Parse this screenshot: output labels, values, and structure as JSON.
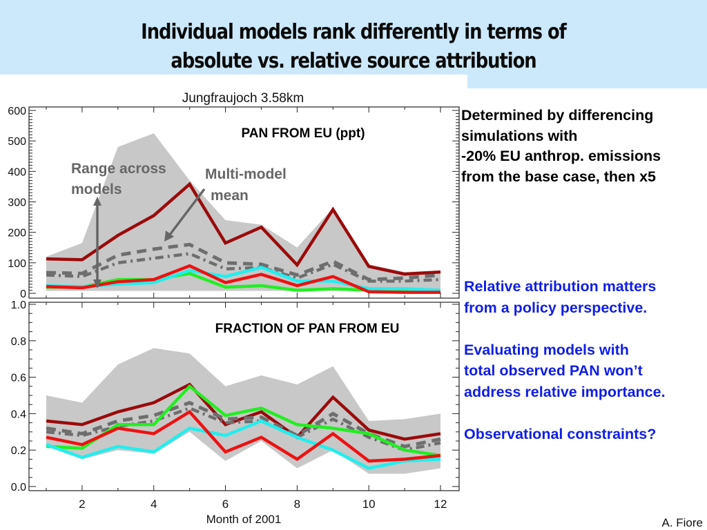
{
  "slide": {
    "title_lines": [
      "Individual models rank differently in terms of",
      "absolute vs. relative source attribution"
    ],
    "author": "A. Fiore"
  },
  "side_note": {
    "lines": [
      "Determined by differencing",
      "simulations with",
      "-20% EU anthrop. emissions",
      "from the base case, then x5"
    ]
  },
  "blue_notes": {
    "paragraphs": [
      [
        "Relative attribution matters",
        "from a policy perspective."
      ],
      [
        "Evaluating models with",
        "total observed PAN won’t",
        "address relative importance."
      ],
      [
        "Observational constraints?"
      ]
    ],
    "color": "#0f1ee6"
  },
  "annotations": {
    "range_label": [
      "Range across",
      "models"
    ],
    "mean_label": [
      "Multi-model",
      "mean"
    ],
    "color": "#666666"
  },
  "chart_data": [
    {
      "type": "line",
      "panel": "top",
      "figure_title": "Jungfraujoch 3.58km",
      "title": "PAN FROM EU (ppt)",
      "xlabel": "",
      "ylabel": "",
      "x": [
        1,
        2,
        3,
        4,
        5,
        6,
        7,
        8,
        9,
        10,
        11,
        12
      ],
      "xlim": [
        0.2,
        12.5
      ],
      "ylim": [
        0,
        600
      ],
      "yticks": [
        0,
        100,
        200,
        300,
        400,
        500,
        600
      ],
      "ytick_labels": [
        "0",
        "100",
        "200",
        "300",
        "400",
        "500",
        "600"
      ],
      "xticks": [
        2,
        4,
        6,
        8,
        10,
        12
      ],
      "xtick_labels": [],
      "grid": false,
      "range_band": {
        "name": "Range across models",
        "upper": [
          120,
          165,
          480,
          525,
          370,
          240,
          225,
          150,
          280,
          95,
          70,
          75
        ],
        "lower": [
          8,
          8,
          8,
          8,
          8,
          8,
          8,
          8,
          8,
          8,
          8,
          8
        ],
        "color": "#c8c8c8"
      },
      "series": [
        {
          "name": "model-darkred",
          "style": "solid",
          "color": "#9b0a0a",
          "values": [
            113,
            110,
            190,
            255,
            358,
            165,
            217,
            93,
            275,
            88,
            63,
            70
          ]
        },
        {
          "name": "multi-model-mean",
          "style": "dashed",
          "color": "#6e6e6e",
          "values": [
            68,
            65,
            125,
            145,
            160,
            100,
            95,
            60,
            105,
            45,
            50,
            60
          ]
        },
        {
          "name": "multi-model-median",
          "style": "dashdot",
          "color": "#6e6e6e",
          "values": [
            60,
            55,
            100,
            115,
            130,
            80,
            85,
            50,
            95,
            40,
            40,
            45
          ]
        },
        {
          "name": "model-green",
          "style": "solid",
          "color": "#22ee22",
          "values": [
            20,
            20,
            45,
            45,
            65,
            20,
            25,
            10,
            15,
            10,
            10,
            10
          ]
        },
        {
          "name": "model-cyan",
          "style": "solid",
          "color": "#22eeee",
          "values": [
            25,
            22,
            30,
            35,
            75,
            55,
            85,
            40,
            40,
            15,
            15,
            10
          ]
        },
        {
          "name": "model-red",
          "style": "solid",
          "color": "#ee1111",
          "values": [
            22,
            18,
            38,
            45,
            90,
            35,
            62,
            25,
            55,
            5,
            3,
            3
          ]
        }
      ]
    },
    {
      "type": "line",
      "panel": "bottom",
      "title": "FRACTION OF PAN FROM EU",
      "xlabel": "Month of 2001",
      "ylabel": "",
      "x": [
        1,
        2,
        3,
        4,
        5,
        6,
        7,
        8,
        9,
        10,
        11,
        12
      ],
      "xlim": [
        0.2,
        12.5
      ],
      "ylim": [
        0,
        1.0
      ],
      "yticks": [
        0,
        0.2,
        0.4,
        0.6,
        0.8,
        1.0
      ],
      "ytick_labels": [
        "0.0",
        "0.2",
        "0.4",
        "0.6",
        "0.8",
        "1.0"
      ],
      "xticks": [
        2,
        4,
        6,
        8,
        10,
        12
      ],
      "xtick_labels": [
        "2",
        "4",
        "6",
        "8",
        "10",
        "12"
      ],
      "grid": false,
      "range_band": {
        "name": "Range across models",
        "upper": [
          0.5,
          0.46,
          0.67,
          0.76,
          0.73,
          0.55,
          0.61,
          0.56,
          0.66,
          0.36,
          0.37,
          0.4
        ],
        "lower": [
          0.22,
          0.15,
          0.2,
          0.18,
          0.3,
          0.14,
          0.25,
          0.1,
          0.2,
          0.07,
          0.07,
          0.1
        ],
        "color": "#c8c8c8"
      },
      "series": [
        {
          "name": "model-darkred",
          "style": "solid",
          "color": "#9b0a0a",
          "values": [
            0.36,
            0.34,
            0.41,
            0.46,
            0.56,
            0.34,
            0.41,
            0.27,
            0.49,
            0.31,
            0.26,
            0.29
          ]
        },
        {
          "name": "multi-model-mean",
          "style": "dashed",
          "color": "#6e6e6e",
          "values": [
            0.32,
            0.29,
            0.36,
            0.39,
            0.46,
            0.37,
            0.38,
            0.28,
            0.4,
            0.29,
            0.22,
            0.26
          ]
        },
        {
          "name": "multi-model-median",
          "style": "dashdot",
          "color": "#6e6e6e",
          "values": [
            0.3,
            0.28,
            0.33,
            0.36,
            0.43,
            0.35,
            0.36,
            0.27,
            0.37,
            0.27,
            0.2,
            0.24
          ]
        },
        {
          "name": "model-green",
          "style": "solid",
          "color": "#22ee22",
          "values": [
            0.22,
            0.21,
            0.34,
            0.34,
            0.55,
            0.39,
            0.43,
            0.34,
            0.32,
            0.29,
            0.2,
            0.17
          ]
        },
        {
          "name": "model-cyan",
          "style": "solid",
          "color": "#22eeee",
          "values": [
            0.23,
            0.16,
            0.22,
            0.19,
            0.32,
            0.28,
            0.36,
            0.27,
            0.2,
            0.1,
            0.14,
            0.15
          ]
        },
        {
          "name": "model-red",
          "style": "solid",
          "color": "#ee1111",
          "values": [
            0.27,
            0.23,
            0.32,
            0.29,
            0.41,
            0.19,
            0.27,
            0.15,
            0.29,
            0.14,
            0.15,
            0.17
          ]
        }
      ]
    }
  ]
}
